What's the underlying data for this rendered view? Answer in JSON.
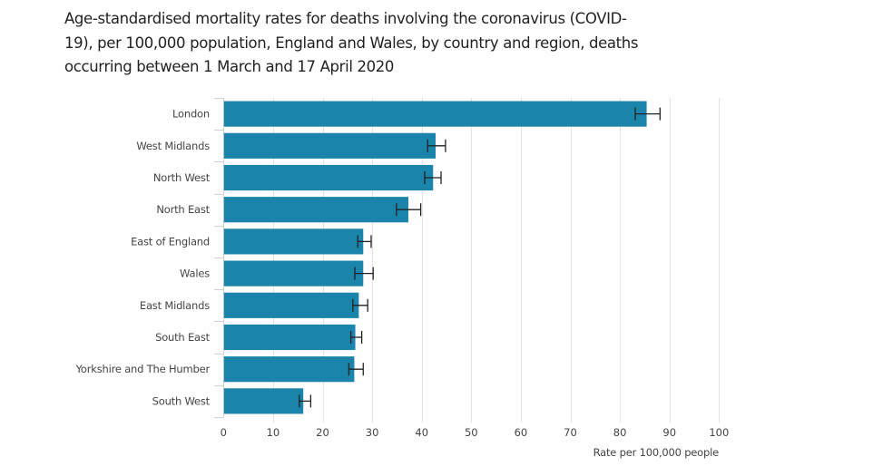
{
  "chart_data": {
    "type": "bar",
    "orientation": "horizontal",
    "title": "Age-standardised mortality rates for deaths involving the coronavirus (COVID-19), per 100,000 population, England and Wales, by country and region, deaths occurring between 1 March and 17 April 2020",
    "xlabel": "Rate per 100,000 people",
    "ylabel": "",
    "xlim": [
      0,
      100
    ],
    "xticks": [
      0,
      10,
      20,
      30,
      40,
      50,
      60,
      70,
      80,
      90,
      100
    ],
    "grid": true,
    "legend": "none",
    "bar_color": "#1a84ab",
    "error_bar_color": "#222222",
    "categories": [
      "London",
      "West Midlands",
      "North West",
      "North East",
      "East of England",
      "Wales",
      "East Midlands",
      "South East",
      "Yorkshire and The Humber",
      "South West"
    ],
    "values": [
      85.4,
      42.8,
      42.3,
      37.3,
      28.2,
      28.2,
      27.3,
      26.6,
      26.4,
      16.1
    ],
    "ci_lower": [
      83.1,
      41.2,
      40.6,
      34.9,
      27.1,
      26.5,
      26.1,
      25.7,
      25.3,
      15.3
    ],
    "ci_upper": [
      88.1,
      44.8,
      43.9,
      39.8,
      29.8,
      30.2,
      29.1,
      27.9,
      28.2,
      17.6
    ]
  }
}
